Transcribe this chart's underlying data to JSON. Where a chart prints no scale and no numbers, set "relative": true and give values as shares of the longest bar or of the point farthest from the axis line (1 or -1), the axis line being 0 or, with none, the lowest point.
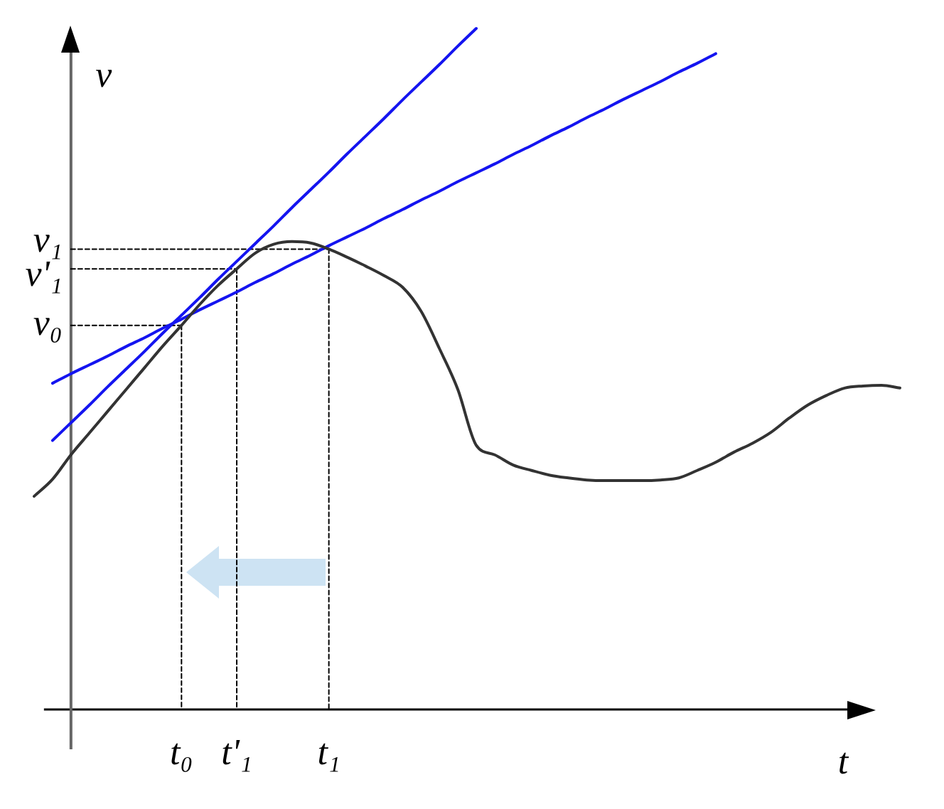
{
  "chart_data": {
    "type": "line",
    "xlabel": "t",
    "ylabel": "v",
    "relative": true,
    "categories": [
      null,
      null,
      null,
      null,
      null,
      null,
      null,
      null,
      "t₀",
      null,
      null,
      "t'₁",
      null,
      null,
      null,
      null,
      "t₁",
      null,
      null,
      null,
      null,
      null,
      null,
      null,
      null,
      null,
      null,
      null,
      null,
      null,
      null,
      null,
      null,
      null,
      null,
      null,
      null,
      null,
      null,
      null,
      null,
      null,
      null,
      null,
      null,
      null,
      null,
      null
    ],
    "series": [
      {
        "color": "#333333",
        "values": [
          0.313,
          0.338,
          0.374,
          0.406,
          0.438,
          0.47,
          0.502,
          0.534,
          0.564,
          0.595,
          0.623,
          0.647,
          0.67,
          0.683,
          0.687,
          0.685,
          0.676,
          0.664,
          0.651,
          0.637,
          0.62,
          0.585,
          0.53,
          0.47,
          0.388,
          0.374,
          0.359,
          0.351,
          0.344,
          0.34,
          0.337,
          0.336,
          0.336,
          0.336,
          0.337,
          0.34,
          0.351,
          0.363,
          0.378,
          0.391,
          0.407,
          0.428,
          0.447,
          0.461,
          0.472,
          0.475,
          0.476,
          0.472
        ]
      },
      {
        "color": "#1414f0",
        "values": [
          null,
          0.395,
          0.421,
          0.447,
          0.474,
          0.5,
          0.526,
          0.553,
          0.579,
          0.605,
          0.632,
          0.658,
          0.684,
          0.71,
          0.737,
          0.763,
          0.789,
          0.816,
          0.842,
          0.868,
          0.895,
          0.921,
          0.947,
          0.974,
          1,
          null,
          null,
          null,
          null,
          null,
          null,
          null,
          null,
          null,
          null,
          null,
          null,
          null,
          null,
          null,
          null,
          null,
          null,
          null,
          null,
          null,
          null,
          null
        ]
      },
      {
        "color": "#1414f0",
        "values": [
          null,
          0.479,
          0.493,
          0.506,
          0.519,
          0.533,
          0.546,
          0.56,
          0.573,
          0.587,
          0.6,
          0.613,
          0.627,
          0.64,
          0.654,
          0.667,
          0.681,
          0.694,
          0.707,
          0.721,
          0.734,
          0.748,
          0.761,
          0.775,
          0.788,
          0.801,
          0.815,
          0.828,
          0.842,
          0.855,
          0.869,
          0.882,
          0.896,
          0.909,
          0.922,
          0.936,
          0.949,
          0.963,
          null,
          null,
          null,
          null,
          null,
          null,
          null,
          null,
          null,
          null
        ]
      },
      {
        "name": "v₁",
        "color": "#000000",
        "line_style": "dashed",
        "values": [
          null,
          null,
          0.676,
          0.676,
          0.676,
          0.676,
          0.676,
          0.676,
          0.676,
          0.676,
          0.676,
          0.676,
          0.676,
          0.676,
          0.676,
          0.676,
          0.676,
          null,
          null,
          null,
          null,
          null,
          null,
          null,
          null,
          null,
          null,
          null,
          null,
          null,
          null,
          null,
          null,
          null,
          null,
          null,
          null,
          null,
          null,
          null,
          null,
          null,
          null,
          null,
          null,
          null,
          null,
          null
        ]
      },
      {
        "name": "v'₁",
        "color": "#000000",
        "line_style": "dashed",
        "values": [
          null,
          null,
          0.647,
          0.647,
          0.647,
          0.647,
          0.647,
          0.647,
          0.647,
          0.647,
          0.647,
          0.647,
          null,
          null,
          null,
          null,
          null,
          null,
          null,
          null,
          null,
          null,
          null,
          null,
          null,
          null,
          null,
          null,
          null,
          null,
          null,
          null,
          null,
          null,
          null,
          null,
          null,
          null,
          null,
          null,
          null,
          null,
          null,
          null,
          null,
          null,
          null,
          null
        ]
      },
      {
        "name": "v₀",
        "color": "#000000",
        "line_style": "dashed",
        "values": [
          null,
          null,
          0.564,
          0.564,
          0.564,
          0.564,
          0.564,
          0.564,
          0.564,
          null,
          null,
          null,
          null,
          null,
          null,
          null,
          null,
          null,
          null,
          null,
          null,
          null,
          null,
          null,
          null,
          null,
          null,
          null,
          null,
          null,
          null,
          null,
          null,
          null,
          null,
          null,
          null,
          null,
          null,
          null,
          null,
          null,
          null,
          null,
          null,
          null,
          null,
          null
        ]
      },
      {
        "color": "#000000",
        "line_style": "dashed",
        "x": [
          "t₀",
          "t₀"
        ],
        "values": [
          0.564,
          0
        ]
      },
      {
        "color": "#000000",
        "line_style": "dashed",
        "x": [
          "t'₁",
          "t'₁"
        ],
        "values": [
          0.647,
          0
        ]
      },
      {
        "color": "#000000",
        "line_style": "dashed",
        "x": [
          "t₁",
          "t₁"
        ],
        "values": [
          0.676,
          0
        ]
      }
    ]
  }
}
